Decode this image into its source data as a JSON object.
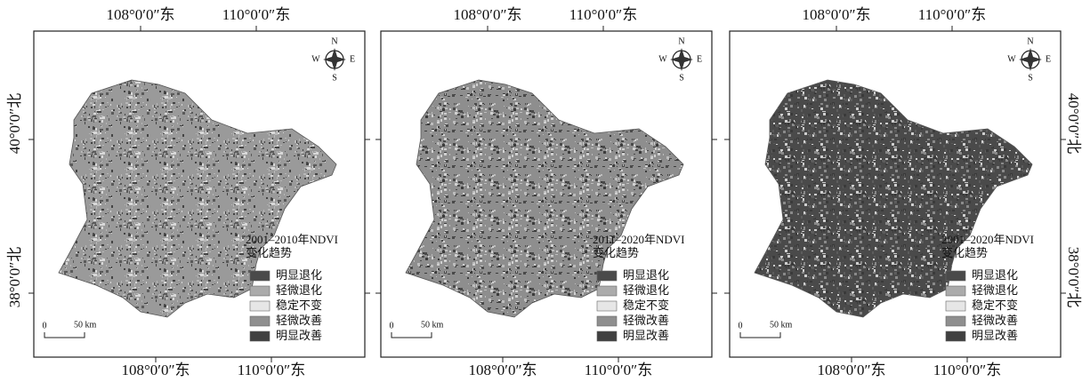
{
  "panels": [
    {
      "top_labels": [
        "108°0′0″东",
        "110°0′0″东"
      ],
      "bottom_labels": [
        "108°0′0″东",
        "110°0′0″东"
      ],
      "left_labels": [
        "40°0′0″北",
        "38°0′0″北"
      ],
      "legend": {
        "title_lines": [
          "2001–2010年NDVI",
          "变化趋势"
        ],
        "items": [
          "明显退化",
          "轻微退化",
          "稳定不变",
          "轻微改善",
          "明显改善"
        ],
        "colors": [
          "#4a4a4a",
          "#ababab",
          "#e6e6e6",
          "#8f8f8f",
          "#404040"
        ]
      },
      "scale": [
        "0",
        "50 km"
      ],
      "compass": [
        "N",
        "S",
        "W",
        "E"
      ]
    },
    {
      "top_labels": [
        "108°0′0″东",
        "110°0′0″东"
      ],
      "bottom_labels": [
        "108°0′0″东",
        "110°0′0″东"
      ],
      "legend": {
        "title_lines": [
          "2011–2020年NDVI",
          "变化趋势"
        ],
        "items": [
          "明显退化",
          "轻微退化",
          "稳定不变",
          "轻微改善",
          "明显改善"
        ],
        "colors": [
          "#4a4a4a",
          "#ababab",
          "#e6e6e6",
          "#8f8f8f",
          "#404040"
        ]
      },
      "scale": [
        "0",
        "50 km"
      ],
      "compass": [
        "N",
        "S",
        "W",
        "E"
      ]
    },
    {
      "top_labels": [
        "108°0′0″东",
        "110°0′0″东"
      ],
      "bottom_labels": [
        "108°0′0″东",
        "110°0′0″东"
      ],
      "right_labels": [
        "40°0′0″北",
        "38°0′0″北"
      ],
      "legend": {
        "title_lines": [
          "2001–2020年NDVI",
          "变化趋势"
        ],
        "items": [
          "明显退化",
          "轻微退化",
          "稳定不变",
          "轻微改善",
          "明显改善"
        ],
        "colors": [
          "#4a4a4a",
          "#ababab",
          "#e6e6e6",
          "#8f8f8f",
          "#404040"
        ]
      },
      "scale": [
        "0",
        "50 km"
      ],
      "compass": [
        "N",
        "S",
        "W",
        "E"
      ]
    }
  ]
}
